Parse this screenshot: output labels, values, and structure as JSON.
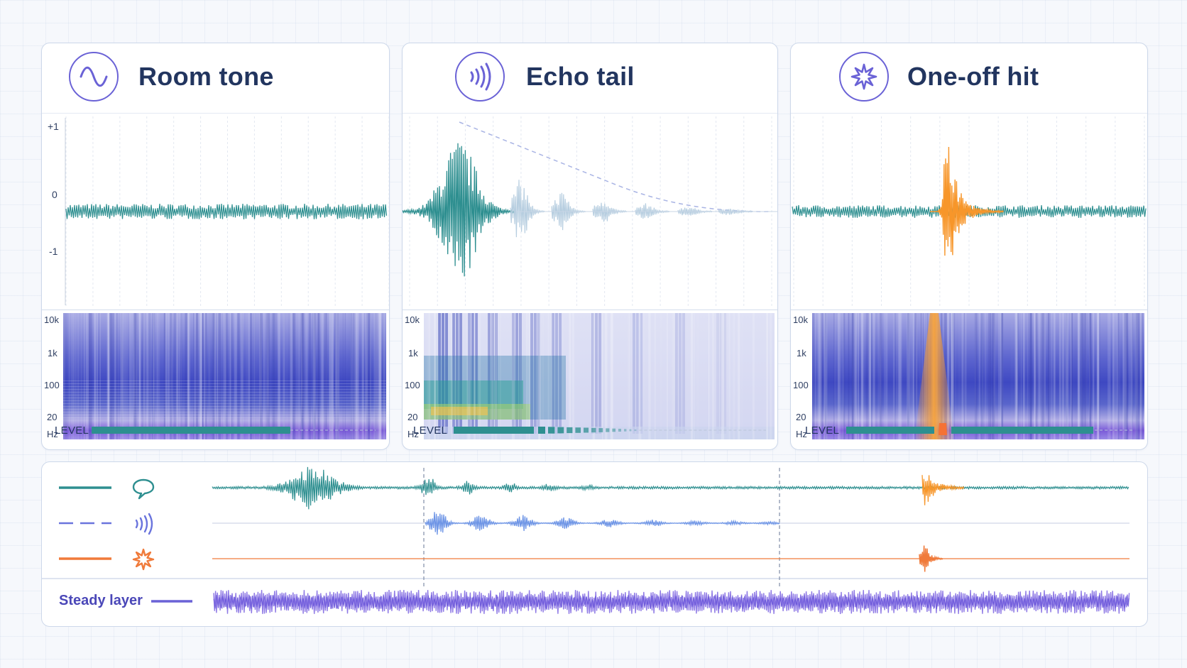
{
  "panels": [
    {
      "id": "room",
      "title": "Room tone",
      "icon": "sine-wave-icon",
      "amplitude_ticks": [
        "+1",
        "0",
        "-1"
      ],
      "freq_ticks": [
        "10k",
        "1k",
        "100",
        "20",
        "Hz"
      ],
      "level_label": "LEVEL",
      "level": {
        "style": "steady",
        "fill": 0.7
      }
    },
    {
      "id": "echo",
      "title": "Echo tail",
      "icon": "echo-waves-icon",
      "freq_ticks": [
        "10k",
        "1k",
        "100",
        "20",
        "Hz"
      ],
      "level_label": "LEVEL",
      "level": {
        "style": "decaying-segments"
      }
    },
    {
      "id": "hit",
      "title": "One-off hit",
      "icon": "burst-star-icon",
      "freq_ticks": [
        "10k",
        "1k",
        "100",
        "20",
        "Hz"
      ],
      "level_label": "LEVEL",
      "level": {
        "style": "steady-with-spike"
      }
    }
  ],
  "timeline": {
    "tracks": [
      {
        "name": "speech",
        "icon": "speech-bubble-icon",
        "line": "solid",
        "color": "#2e8f90"
      },
      {
        "name": "echo",
        "icon": "echo-waves-icon",
        "line": "dashed",
        "color": "#6a74dd"
      },
      {
        "name": "hit",
        "icon": "burst-star-icon",
        "line": "solid",
        "color": "#f07a3a"
      }
    ],
    "steady_label": "Steady layer"
  },
  "colors": {
    "teal": "#2e8f90",
    "orange": "#f7962a",
    "purple": "#6a62d6",
    "navy": "#22355f",
    "light_blue": "#b7cee0"
  }
}
